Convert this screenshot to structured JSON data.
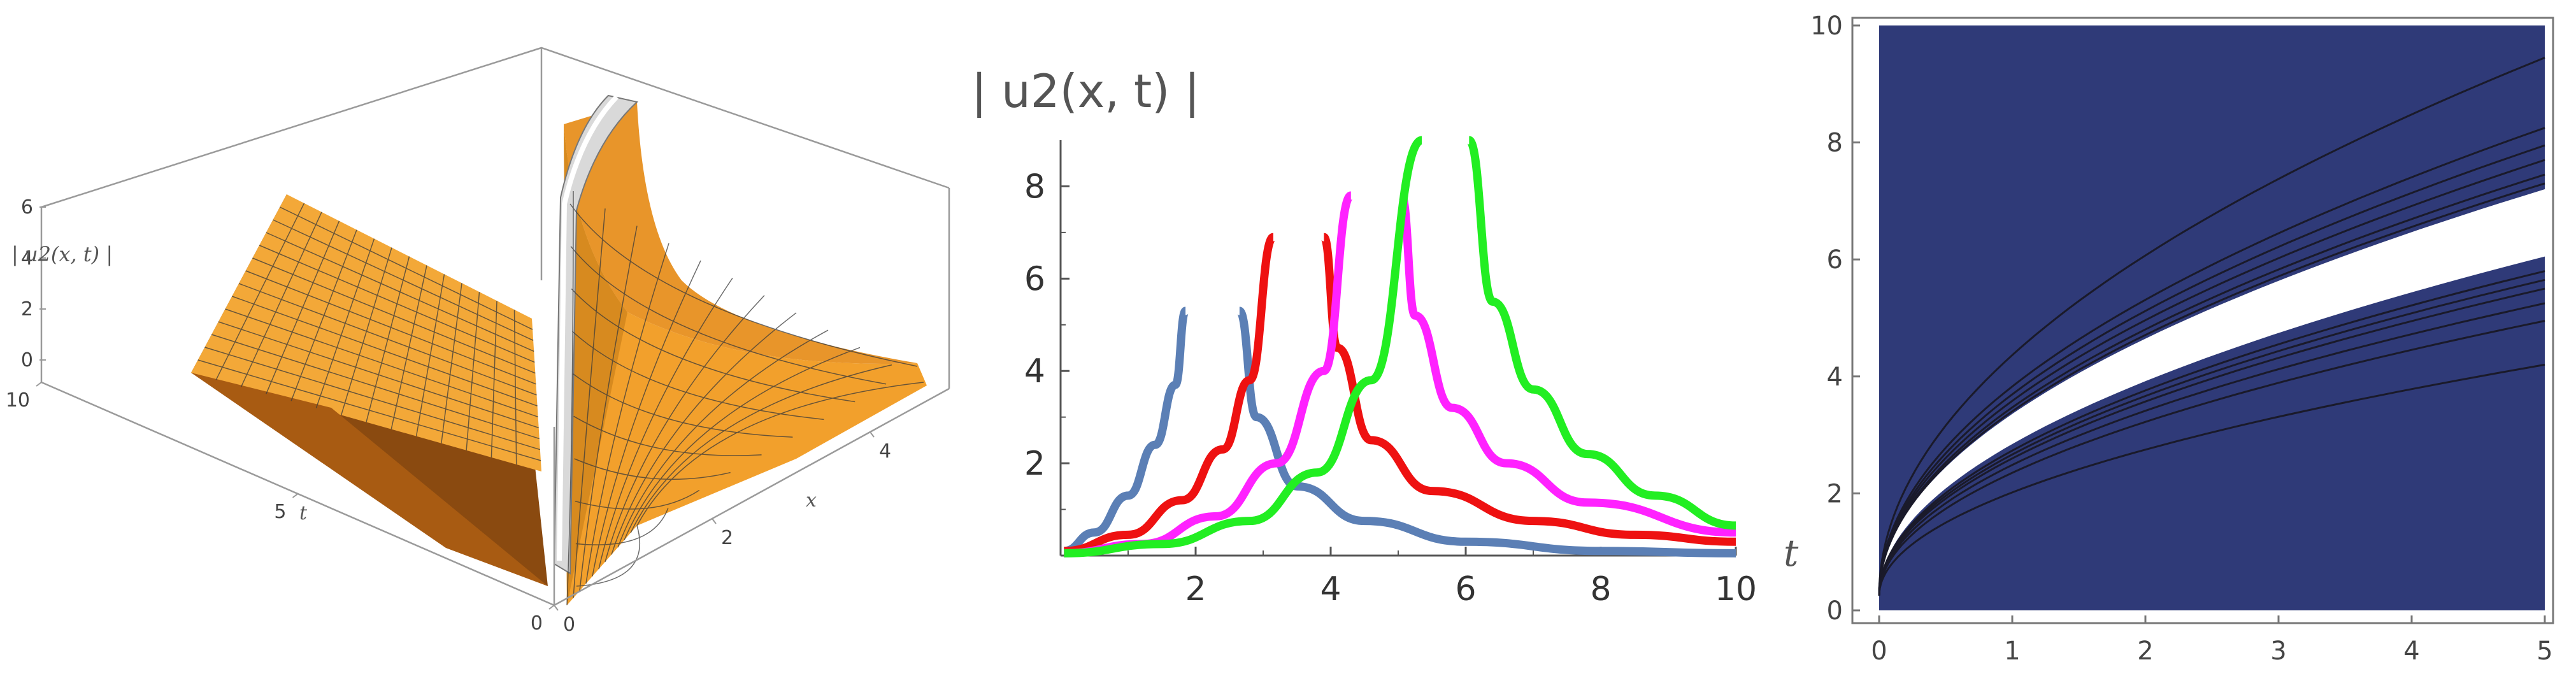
{
  "chart_data": [
    {
      "type": "surface3d",
      "zlabel": "| u2(x, t) |",
      "xlabel": "x",
      "ylabel": "t",
      "x_ticks": [
        "0",
        "2",
        "4"
      ],
      "t_ticks": [
        "0",
        "5",
        "10"
      ],
      "z_ticks": [
        "0",
        "2",
        "4",
        "6"
      ],
      "xlim": [
        0,
        5
      ],
      "tlim": [
        0,
        10
      ],
      "zlim": [
        0,
        6
      ],
      "colors": {
        "surface": "#f0a02a",
        "ridge": "#d8d8d8",
        "mesh": "#3a3a3a"
      }
    },
    {
      "type": "line",
      "ylabel": "| u2(x, t) |",
      "x_ticks": [
        "2",
        "4",
        "6",
        "8",
        "10"
      ],
      "y_ticks": [
        "2",
        "4",
        "6",
        "8"
      ],
      "xlim": [
        0,
        10
      ],
      "ylim": [
        0,
        9
      ],
      "series": [
        {
          "color": "#5b7fb5",
          "left": [
            [
              0.05,
              0.1
            ],
            [
              0.5,
              0.5
            ],
            [
              1.0,
              1.3
            ],
            [
              1.4,
              2.4
            ],
            [
              1.7,
              3.7
            ],
            [
              1.85,
              5.3
            ]
          ],
          "right": [
            [
              2.65,
              5.3
            ],
            [
              2.9,
              3.0
            ],
            [
              3.5,
              1.5
            ],
            [
              4.5,
              0.75
            ],
            [
              6,
              0.3
            ],
            [
              8,
              0.1
            ],
            [
              10,
              0.05
            ]
          ]
        },
        {
          "color": "#ee1111",
          "left": [
            [
              0.05,
              0.1
            ],
            [
              1.0,
              0.45
            ],
            [
              1.8,
              1.2
            ],
            [
              2.4,
              2.3
            ],
            [
              2.8,
              3.8
            ],
            [
              3.15,
              6.9
            ]
          ],
          "right": [
            [
              3.9,
              6.9
            ],
            [
              4.1,
              4.5
            ],
            [
              4.6,
              2.5
            ],
            [
              5.5,
              1.4
            ],
            [
              7,
              0.75
            ],
            [
              8.5,
              0.45
            ],
            [
              10,
              0.3
            ]
          ]
        },
        {
          "color": "#ff22ff",
          "left": [
            [
              0.05,
              0.05
            ],
            [
              1.2,
              0.25
            ],
            [
              2.3,
              0.85
            ],
            [
              3.2,
              2.0
            ],
            [
              3.9,
              4.0
            ],
            [
              4.3,
              7.8
            ]
          ],
          "right": [
            [
              5.05,
              7.8
            ],
            [
              5.25,
              5.2
            ],
            [
              5.8,
              3.2
            ],
            [
              6.6,
              2.0
            ],
            [
              7.8,
              1.15
            ],
            [
              10,
              0.5
            ]
          ]
        },
        {
          "color": "#22ee22",
          "left": [
            [
              0.05,
              0.05
            ],
            [
              1.5,
              0.25
            ],
            [
              2.8,
              0.75
            ],
            [
              3.8,
              1.8
            ],
            [
              4.6,
              3.8
            ],
            [
              5.35,
              9.0
            ]
          ],
          "right": [
            [
              6.05,
              9.0
            ],
            [
              6.4,
              5.5
            ],
            [
              7.0,
              3.6
            ],
            [
              7.8,
              2.2
            ],
            [
              8.8,
              1.3
            ],
            [
              10,
              0.65
            ]
          ]
        }
      ]
    },
    {
      "type": "contour",
      "ylabel": "t",
      "x_ticks": [
        "0",
        "1",
        "2",
        "3",
        "4",
        "5"
      ],
      "y_ticks": [
        "0",
        "2",
        "4",
        "6",
        "8",
        "10"
      ],
      "xlim": [
        0,
        5
      ],
      "ylim": [
        0,
        10
      ],
      "colors": {
        "fill": "#2f3a78",
        "gap": "#ffffff",
        "lines": "#1a1a2a"
      },
      "gap_band": {
        "lower_at_x5": 6.05,
        "upper_at_x5": 7.2
      },
      "upper_lines_at_x5": [
        9.45,
        8.25,
        7.95,
        7.7,
        7.45,
        7.3
      ],
      "lower_lines_at_x5": [
        5.8,
        5.65,
        5.5,
        5.25,
        4.95,
        4.2
      ]
    }
  ]
}
